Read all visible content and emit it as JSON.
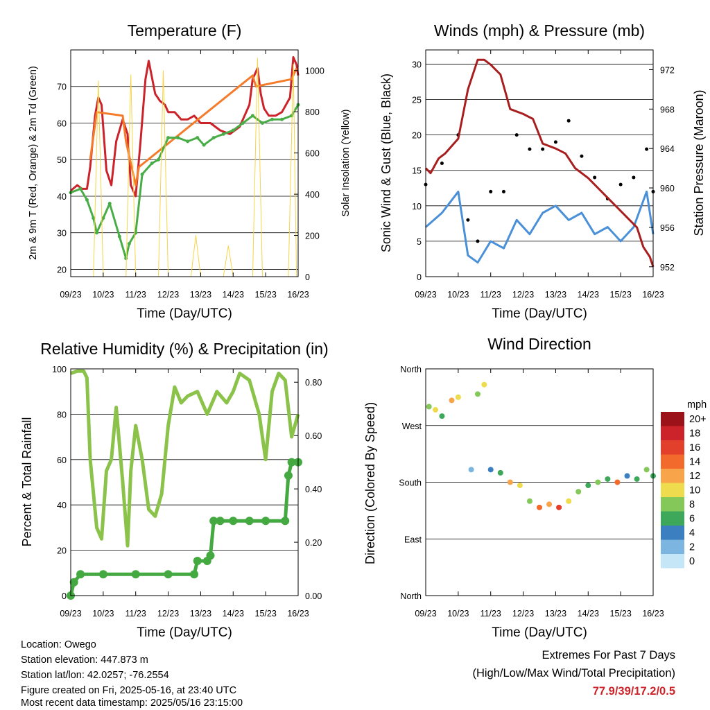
{
  "panels": {
    "temperature": {
      "title": "Temperature (F)",
      "xlabel": "Time (Day/UTC)",
      "ylabel_left": "2m & 9m T (Red, Orange) & 2m Td (Green)",
      "ylabel_right": "Solar Insolation (Yellow)"
    },
    "winds": {
      "title": "Winds (mph) & Pressure (mb)",
      "xlabel": "Time (Day/UTC)",
      "ylabel_left": "Sonic Wind & Gust (Blue, Black)",
      "ylabel_right": "Station Pressure (Maroon)"
    },
    "humidity": {
      "title": "Relative Humidity (%) & Precipitation (in)",
      "xlabel": "Time (Day/UTC)",
      "ylabel_left": "Percent & Total Rainfall"
    },
    "direction": {
      "title": "Wind Direction",
      "xlabel": "Time (Day/UTC)",
      "ylabel_left": "Direction (Colored By Speed)",
      "legend_title": "mph",
      "legend_labels": [
        "20+",
        "18",
        "16",
        "14",
        "12",
        "10",
        "8",
        "6",
        "4",
        "2",
        "0"
      ],
      "legend_colors": [
        "#9b1218",
        "#cc2229",
        "#e2402b",
        "#f26b2c",
        "#f8a44a",
        "#eedc4e",
        "#85c85a",
        "#3ea85a",
        "#3b7fc0",
        "#7bb5e0",
        "#c5e6f6"
      ]
    }
  },
  "info": {
    "location": "Location: Owego",
    "elevation": "Station elevation: 447.873 m",
    "latlon": "Station lat/lon: 42.0257; -76.2554",
    "created": "Figure created on Fri, 2025-05-16, at 23:40 UTC",
    "recent": "Most recent data timestamp: 2025/05/16 23:15:00"
  },
  "extremes": {
    "title": "Extremes For Past 7 Days",
    "subtitle": "(High/Low/Max Wind/Total Precipitation)",
    "values": "77.9/39/17.2/0.5"
  },
  "chart_data": [
    {
      "type": "line",
      "title": "Temperature (F)",
      "xlabel": "Time (Day/UTC)",
      "ylabel": "2m & 9m T (Red, Orange) & 2m Td (Green)",
      "ylabel_right": "Solar Insolation (Yellow)",
      "x_ticks": [
        "09/23",
        "10/23",
        "11/23",
        "12/23",
        "13/23",
        "14/23",
        "15/23",
        "16/23"
      ],
      "ylim": [
        18,
        80
      ],
      "y_ticks": [
        20,
        30,
        40,
        50,
        60,
        70
      ],
      "ylim_right": [
        0,
        1100
      ],
      "y_ticks_right": [
        0,
        200,
        400,
        600,
        800,
        1000
      ],
      "grid": true,
      "series": [
        {
          "name": "2m T",
          "color": "#cc2229",
          "x": [
            0,
            0.2,
            0.35,
            0.5,
            0.6,
            0.75,
            0.85,
            0.95,
            1.1,
            1.25,
            1.4,
            1.6,
            1.75,
            1.85,
            2.0,
            2.15,
            2.3,
            2.4,
            2.6,
            2.75,
            2.9,
            3.0,
            3.2,
            3.4,
            3.6,
            3.8,
            4.0,
            4.3,
            4.6,
            4.9,
            5.2,
            5.5,
            5.6,
            5.75,
            5.85,
            5.95,
            6.1,
            6.3,
            6.5,
            6.75,
            6.85,
            6.95,
            7.0
          ],
          "y": [
            41.5,
            43,
            42,
            42,
            48,
            62,
            67,
            65,
            47,
            43,
            55,
            61,
            57,
            43,
            40,
            55,
            72,
            77,
            68,
            66,
            65,
            63,
            63,
            61,
            61,
            62,
            60,
            60,
            58,
            57,
            59,
            65,
            72,
            75,
            68,
            64,
            62,
            62,
            63,
            67,
            78,
            76,
            73
          ]
        },
        {
          "name": "9m T",
          "color": "#f47b2a",
          "x": [
            0.6,
            0.8,
            1.6,
            1.7,
            2.0,
            2.1,
            5.6,
            5.7,
            6.8,
            6.95
          ],
          "y": [
            50,
            63,
            62,
            55,
            43,
            48,
            73,
            70,
            72,
            75
          ]
        },
        {
          "name": "2m Td",
          "color": "#48ad46",
          "x": [
            0,
            0.3,
            0.5,
            0.7,
            0.8,
            1.0,
            1.2,
            1.5,
            1.7,
            1.8,
            2.0,
            2.2,
            2.5,
            2.7,
            3.0,
            3.3,
            3.6,
            3.9,
            4.1,
            4.4,
            4.7,
            5.0,
            5.3,
            5.6,
            5.9,
            6.2,
            6.5,
            6.8,
            7.0
          ],
          "y": [
            41,
            42,
            39,
            34,
            30,
            34,
            38,
            29,
            23,
            27,
            30,
            46,
            49,
            50,
            56,
            56,
            55,
            56,
            54,
            56,
            57,
            58,
            60,
            62,
            60,
            61,
            61,
            62,
            65
          ]
        },
        {
          "name": "Solar Insolation",
          "color": "#f5d547",
          "axis": "right",
          "x": [
            0.7,
            0.85,
            1.0,
            1.7,
            1.85,
            2.0,
            2.7,
            2.85,
            3.0,
            3.7,
            3.85,
            4.0,
            4.7,
            4.85,
            5.0,
            5.6,
            5.75,
            5.9,
            6.7,
            6.85,
            6.95
          ],
          "y": [
            0,
            950,
            0,
            0,
            980,
            0,
            0,
            1000,
            0,
            0,
            200,
            0,
            0,
            150,
            0,
            0,
            1060,
            0,
            0,
            1030,
            0
          ]
        }
      ]
    },
    {
      "type": "line",
      "title": "Winds (mph) & Pressure (mb)",
      "xlabel": "Time (Day/UTC)",
      "ylabel": "Sonic Wind & Gust (Blue, Black)",
      "ylabel_right": "Station Pressure (Maroon)",
      "x_ticks": [
        "09/23",
        "10/23",
        "11/23",
        "12/23",
        "13/23",
        "14/23",
        "15/23",
        "16/23"
      ],
      "ylim": [
        0,
        32
      ],
      "y_ticks": [
        0,
        5,
        10,
        15,
        20,
        25,
        30
      ],
      "ylim_right": [
        951,
        974
      ],
      "y_ticks_right": [
        952,
        956,
        960,
        964,
        968,
        972
      ],
      "grid": true,
      "series": [
        {
          "name": "Sonic Wind",
          "color": "#4a90d9",
          "x": [
            0,
            0.5,
            1.0,
            1.3,
            1.6,
            2.0,
            2.4,
            2.8,
            3.2,
            3.6,
            4.0,
            4.4,
            4.8,
            5.2,
            5.6,
            6.0,
            6.4,
            6.8,
            7.0
          ],
          "y": [
            7,
            9,
            12,
            3,
            2,
            5,
            4,
            8,
            6,
            9,
            10,
            8,
            9,
            6,
            7,
            5,
            7,
            12,
            6
          ]
        },
        {
          "name": "Gust",
          "color": "#000000",
          "x": [
            0,
            0.5,
            1.0,
            1.3,
            1.6,
            2.0,
            2.4,
            2.8,
            3.2,
            3.6,
            4.0,
            4.4,
            4.8,
            5.2,
            5.6,
            6.0,
            6.4,
            6.8,
            7.0
          ],
          "y": [
            13,
            16,
            20,
            8,
            5,
            12,
            12,
            20,
            18,
            18,
            19,
            22,
            17,
            14,
            11,
            13,
            14,
            18,
            12
          ]
        },
        {
          "name": "Station Pressure",
          "color": "#a81e1e",
          "axis": "right",
          "x": [
            0,
            0.15,
            0.4,
            0.6,
            1.0,
            1.3,
            1.6,
            1.8,
            2.0,
            2.3,
            2.6,
            3.0,
            3.3,
            3.6,
            4.0,
            4.3,
            4.6,
            5.0,
            5.3,
            5.6,
            5.9,
            6.2,
            6.5,
            6.7,
            6.9,
            7.0
          ],
          "y": [
            962,
            961.5,
            963,
            963.5,
            965,
            970,
            973,
            973,
            972.5,
            971.5,
            968,
            967.5,
            967,
            964.5,
            964,
            963.5,
            962,
            961,
            960,
            959,
            958,
            957,
            956,
            954,
            953,
            952
          ]
        }
      ]
    },
    {
      "type": "line",
      "title": "Relative Humidity (%) & Precipitation (in)",
      "xlabel": "Time (Day/UTC)",
      "ylabel": "Percent & Total Rainfall",
      "x_ticks": [
        "09/23",
        "10/23",
        "11/23",
        "12/23",
        "13/23",
        "14/23",
        "15/23",
        "16/23"
      ],
      "ylim": [
        0,
        100
      ],
      "y_ticks": [
        0,
        20,
        40,
        60,
        80,
        100
      ],
      "ylim_right": [
        0,
        0.85
      ],
      "y_ticks_right": [
        0.0,
        0.2,
        0.4,
        0.6,
        0.8
      ],
      "grid": true,
      "series": [
        {
          "name": "Relative Humidity",
          "color": "#8bc34a",
          "x": [
            0,
            0.2,
            0.4,
            0.5,
            0.6,
            0.8,
            0.95,
            1.1,
            1.25,
            1.4,
            1.6,
            1.75,
            1.85,
            2.0,
            2.2,
            2.4,
            2.6,
            2.8,
            3.0,
            3.2,
            3.4,
            3.6,
            3.9,
            4.2,
            4.5,
            4.8,
            5.0,
            5.2,
            5.5,
            5.8,
            6.0,
            6.2,
            6.4,
            6.6,
            6.8,
            7.0
          ],
          "y": [
            98,
            99,
            99,
            96,
            60,
            30,
            25,
            55,
            60,
            83,
            50,
            22,
            55,
            75,
            60,
            38,
            35,
            45,
            75,
            92,
            85,
            88,
            90,
            80,
            90,
            85,
            90,
            98,
            95,
            80,
            60,
            90,
            98,
            95,
            70,
            80
          ]
        },
        {
          "name": "Total Precipitation",
          "color": "#43a940",
          "axis": "right",
          "x": [
            0,
            0.1,
            0.3,
            1.0,
            2.0,
            3.0,
            3.8,
            3.9,
            4.2,
            4.3,
            4.4,
            4.6,
            5.0,
            5.5,
            6.0,
            6.6,
            6.7,
            6.8,
            7.0
          ],
          "y": [
            0,
            0.05,
            0.08,
            0.08,
            0.08,
            0.08,
            0.08,
            0.13,
            0.13,
            0.15,
            0.28,
            0.28,
            0.28,
            0.28,
            0.28,
            0.28,
            0.45,
            0.5,
            0.5
          ]
        }
      ]
    },
    {
      "type": "scatter",
      "title": "Wind Direction",
      "xlabel": "Time (Day/UTC)",
      "ylabel": "Direction (Colored By Speed)",
      "x_ticks": [
        "09/23",
        "10/23",
        "11/23",
        "12/23",
        "13/23",
        "14/23",
        "15/23",
        "16/23"
      ],
      "y_ticks": [
        "North",
        "East",
        "South",
        "West",
        "North"
      ],
      "ylim": [
        0,
        360
      ],
      "grid": true,
      "series": [
        {
          "name": "Direction",
          "x": [
            0.1,
            0.3,
            0.5,
            0.8,
            1.0,
            1.4,
            1.6,
            1.8,
            2.0,
            2.3,
            2.6,
            2.9,
            3.2,
            3.5,
            3.8,
            4.1,
            4.4,
            4.7,
            5.0,
            5.3,
            5.6,
            5.9,
            6.2,
            6.5,
            6.8,
            7.0
          ],
          "y": [
            300,
            295,
            285,
            310,
            315,
            200,
            320,
            335,
            200,
            195,
            180,
            175,
            150,
            140,
            145,
            140,
            150,
            165,
            175,
            180,
            185,
            180,
            190,
            185,
            200,
            190
          ],
          "speed": [
            8,
            10,
            6,
            12,
            10,
            2,
            8,
            10,
            4,
            6,
            12,
            10,
            8,
            14,
            12,
            16,
            10,
            8,
            6,
            8,
            6,
            14,
            4,
            6,
            8,
            6
          ]
        }
      ]
    }
  ]
}
